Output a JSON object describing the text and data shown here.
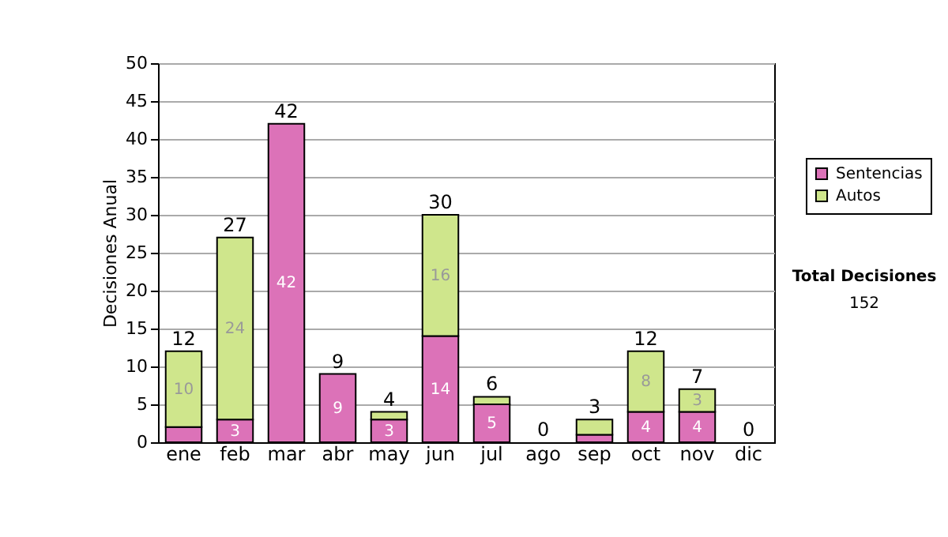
{
  "chart_data": {
    "type": "bar",
    "stacked": true,
    "ylabel": "Decisiones Anual",
    "categories": [
      "ene",
      "feb",
      "mar",
      "abr",
      "may",
      "jun",
      "jul",
      "ago",
      "sep",
      "oct",
      "nov",
      "dic"
    ],
    "series": [
      {
        "name": "Sentencias",
        "color": "#dc72b8",
        "values": [
          2,
          3,
          42,
          9,
          3,
          14,
          5,
          0,
          1,
          4,
          4,
          0
        ],
        "value_labels": [
          null,
          "3",
          "42",
          "9",
          "3",
          "14",
          "5",
          null,
          null,
          "4",
          "4",
          null
        ]
      },
      {
        "name": "Autos",
        "color": "#cfe68c",
        "values": [
          10,
          24,
          0,
          0,
          1,
          16,
          1,
          0,
          2,
          8,
          3,
          0
        ],
        "value_labels": [
          "10",
          "24",
          null,
          null,
          null,
          "16",
          null,
          null,
          null,
          "8",
          "3",
          null
        ]
      }
    ],
    "totals": [
      "12",
      "27",
      "42",
      "9",
      "4",
      "30",
      "6",
      "0",
      "3",
      "12",
      "7",
      "0"
    ],
    "ylim": [
      0,
      50
    ],
    "yticks": [
      0,
      5,
      10,
      15,
      20,
      25,
      30,
      35,
      40,
      45,
      50
    ],
    "grid": "y",
    "legend": "right",
    "annotations": [
      "Total Decisiones",
      "152"
    ]
  }
}
